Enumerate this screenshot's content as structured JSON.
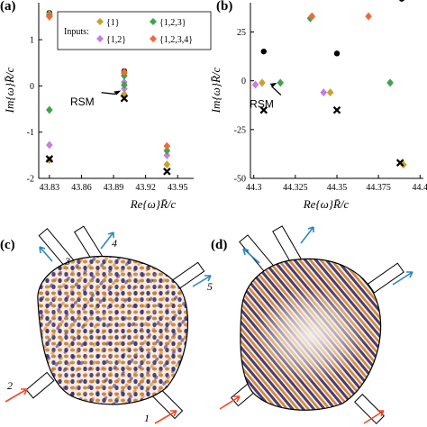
{
  "colors": {
    "series1": "#c9a227",
    "series2": "#c77de0",
    "series3": "#3fa34d",
    "series4": "#ee6a3a",
    "dark": "#000000",
    "in_arrow": "#ee4a2a",
    "out_arrow": "#2e86c1",
    "cavity_dark": "#3a2860",
    "cavity_warm": "#c9761e"
  },
  "chart_data": [
    {
      "panel": "(a)",
      "type": "scatter",
      "xlabel": "Re{ω}R̄/c",
      "ylabel": "Im{ω}R̄/c",
      "xlim": [
        43.82,
        43.965
      ],
      "ylim": [
        -2,
        1.8
      ],
      "xticks": [
        "43.83",
        "43.86",
        "43.89",
        "43.92",
        "43.95"
      ],
      "xtick_values": [
        43.83,
        43.86,
        43.89,
        43.92,
        43.95
      ],
      "yticks": [
        "1",
        "0",
        "-1",
        "-2"
      ],
      "ytick_values": [
        1,
        0,
        -1,
        -2
      ],
      "legend": {
        "title": "Inputs:",
        "entries": [
          "{1}",
          "{1,2}",
          "{1,2,3}",
          "{1,2,3,4}"
        ],
        "placement": "top-center"
      },
      "series": [
        {
          "name": "{1}",
          "color_key": "series1",
          "marker": "diamond",
          "points": [
            [
              43.83,
              1.56
            ],
            [
              43.83,
              -1.6
            ],
            [
              43.9,
              0.27
            ],
            [
              43.9,
              -0.18
            ],
            [
              43.94,
              -1.7
            ]
          ]
        },
        {
          "name": "{1,2}",
          "color_key": "series2",
          "marker": "diamond",
          "points": [
            [
              43.83,
              1.53
            ],
            [
              43.83,
              -1.28
            ],
            [
              43.9,
              0.08
            ],
            [
              43.9,
              -0.06
            ],
            [
              43.94,
              -1.5
            ]
          ]
        },
        {
          "name": "{1,2,3}",
          "color_key": "series3",
          "marker": "diamond",
          "points": [
            [
              43.83,
              1.52
            ],
            [
              43.83,
              -0.52
            ],
            [
              43.9,
              0.22
            ],
            [
              43.9,
              0.02
            ],
            [
              43.94,
              -1.4
            ]
          ]
        },
        {
          "name": "{1,2,3,4}",
          "color_key": "series4",
          "marker": "diamond",
          "points": [
            [
              43.83,
              1.5
            ],
            [
              43.9,
              0.3
            ],
            [
              43.94,
              -1.3
            ]
          ]
        }
      ],
      "black_dots": [
        [
          43.83,
          1.58
        ],
        [
          43.9,
          0.32
        ]
      ],
      "black_crosses": [
        [
          43.83,
          -1.58
        ],
        [
          43.9,
          -0.27
        ],
        [
          43.94,
          -1.85
        ]
      ],
      "annotation": {
        "text": "RSM",
        "arrow_to": [
          43.897,
          -0.1
        ],
        "text_at": [
          43.872,
          -0.3
        ]
      }
    },
    {
      "panel": "(b)",
      "type": "scatter",
      "xlabel": "Re{ω}R̄/c",
      "ylabel": "Im{ω}R̄/c",
      "xlim": [
        44.298,
        44.402
      ],
      "ylim": [
        -50,
        40
      ],
      "xticks": [
        "44.3",
        "44.325",
        "44.35",
        "44.375",
        "44.4"
      ],
      "xtick_values": [
        44.3,
        44.325,
        44.35,
        44.375,
        44.4
      ],
      "yticks": [
        "25",
        "0",
        "-25",
        "-50"
      ],
      "ytick_values": [
        25,
        0,
        -25,
        -50
      ],
      "series": [
        {
          "name": "{1}",
          "color_key": "series1",
          "marker": "diamond",
          "points": [
            [
              44.305,
              -1
            ],
            [
              44.346,
              -6
            ],
            [
              44.39,
              -43
            ]
          ]
        },
        {
          "name": "{1,2}",
          "color_key": "series2",
          "marker": "diamond",
          "points": [
            [
              44.301,
              -2
            ],
            [
              44.342,
              -6
            ]
          ]
        },
        {
          "name": "{1,2,3}",
          "color_key": "series3",
          "marker": "diamond",
          "points": [
            [
              44.316,
              -1
            ],
            [
              44.334,
              32
            ],
            [
              44.382,
              -1
            ]
          ]
        },
        {
          "name": "{1,2,3,4}",
          "color_key": "series4",
          "marker": "diamond",
          "points": [
            [
              44.335,
              33
            ],
            [
              44.369,
              33
            ]
          ]
        }
      ],
      "black_dots": [
        [
          44.306,
          15
        ],
        [
          44.35,
          14
        ],
        [
          44.389,
          42
        ]
      ],
      "black_crosses": [
        [
          44.306,
          -15
        ],
        [
          44.35,
          -15
        ],
        [
          44.388,
          -42
        ]
      ],
      "annotation": {
        "text": "RSM",
        "arrow_to": [
          44.314,
          -1
        ],
        "text_at": [
          44.312,
          -11
        ]
      }
    }
  ],
  "panels": {
    "a": "(a)",
    "b": "(b)",
    "c": "(c)",
    "d": "(d)"
  },
  "port_labels": {
    "p1": "1",
    "p2": "2",
    "p3": "3",
    "p4": "4",
    "p5": "5"
  }
}
